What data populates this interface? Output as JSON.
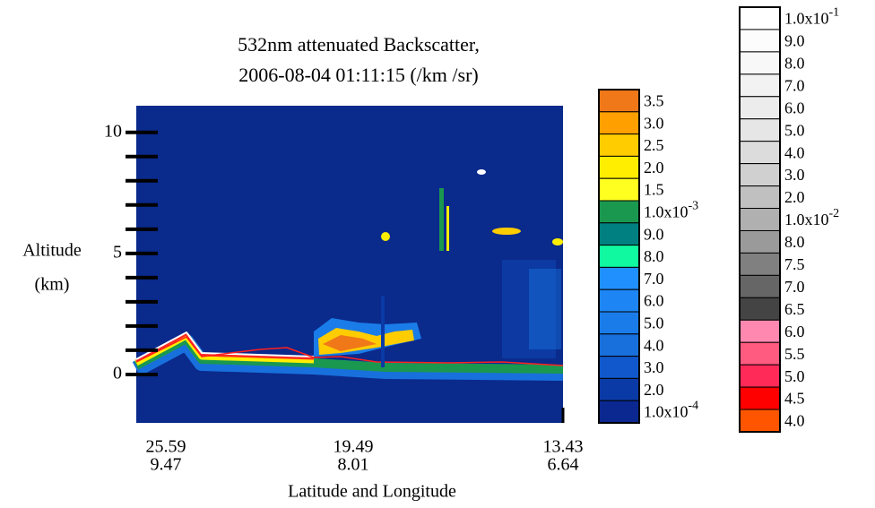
{
  "chart_data": {
    "type": "heatmap",
    "title": [
      "532nm attenuated Backscatter,",
      "2006-08-04 01:11:15 (/km /sr)"
    ],
    "ylabel": [
      "Altitude",
      "(km)"
    ],
    "xlabel": "Latitude and Longitude",
    "ylim": [
      -2,
      11.1
    ],
    "yticks": [
      0,
      5,
      10
    ],
    "yminor": [
      1,
      2,
      3,
      4,
      6,
      7,
      8,
      9
    ],
    "xticks": [
      [
        "25.59",
        "9.47"
      ],
      [
        "19.49",
        "8.01"
      ],
      [
        "13.43",
        "6.64"
      ]
    ],
    "colorbars": [
      {
        "labels": [
          "3.5",
          "3.0",
          "2.5",
          "2.0",
          "1.5",
          {
            "base": "1.0x10",
            "exp": "-3"
          },
          "9.0",
          "8.0",
          "7.0",
          "6.0",
          "5.0",
          "4.0",
          "3.0",
          "2.0",
          {
            "base": "1.0x10",
            "exp": "-4"
          }
        ],
        "colors": [
          "#f07818",
          "#ffa000",
          "#ffcc00",
          "#ffee00",
          "#ffff20",
          "#1a9850",
          "#008080",
          "#10f8a0",
          "#2090ff",
          "#1e86f4",
          "#1a7ce8",
          "#1870dc",
          "#1058cc",
          "#0a3aa6",
          "#0a2890"
        ]
      },
      {
        "labels": [
          {
            "base": "1.0x10",
            "exp": "-1"
          },
          "9.0",
          "8.0",
          "7.0",
          "6.0",
          "5.0",
          "4.0",
          "3.0",
          "2.0",
          {
            "base": "1.0x10",
            "exp": "-2"
          },
          "8.0",
          "7.5",
          "7.0",
          "6.5",
          "6.0",
          "5.5",
          "5.0",
          "4.5",
          "4.0"
        ],
        "colors": [
          "#ffffff",
          "#fcfcfc",
          "#f8f8f8",
          "#f2f2f2",
          "#ececec",
          "#e6e6e6",
          "#dcdcdc",
          "#d0d0d0",
          "#c0c0c0",
          "#b0b0b0",
          "#9a9a9a",
          "#808080",
          "#666666",
          "#444444",
          "#ff88b0",
          "#ff5a80",
          "#ff2a58",
          "#ff0000",
          "#ff5500"
        ]
      }
    ]
  }
}
